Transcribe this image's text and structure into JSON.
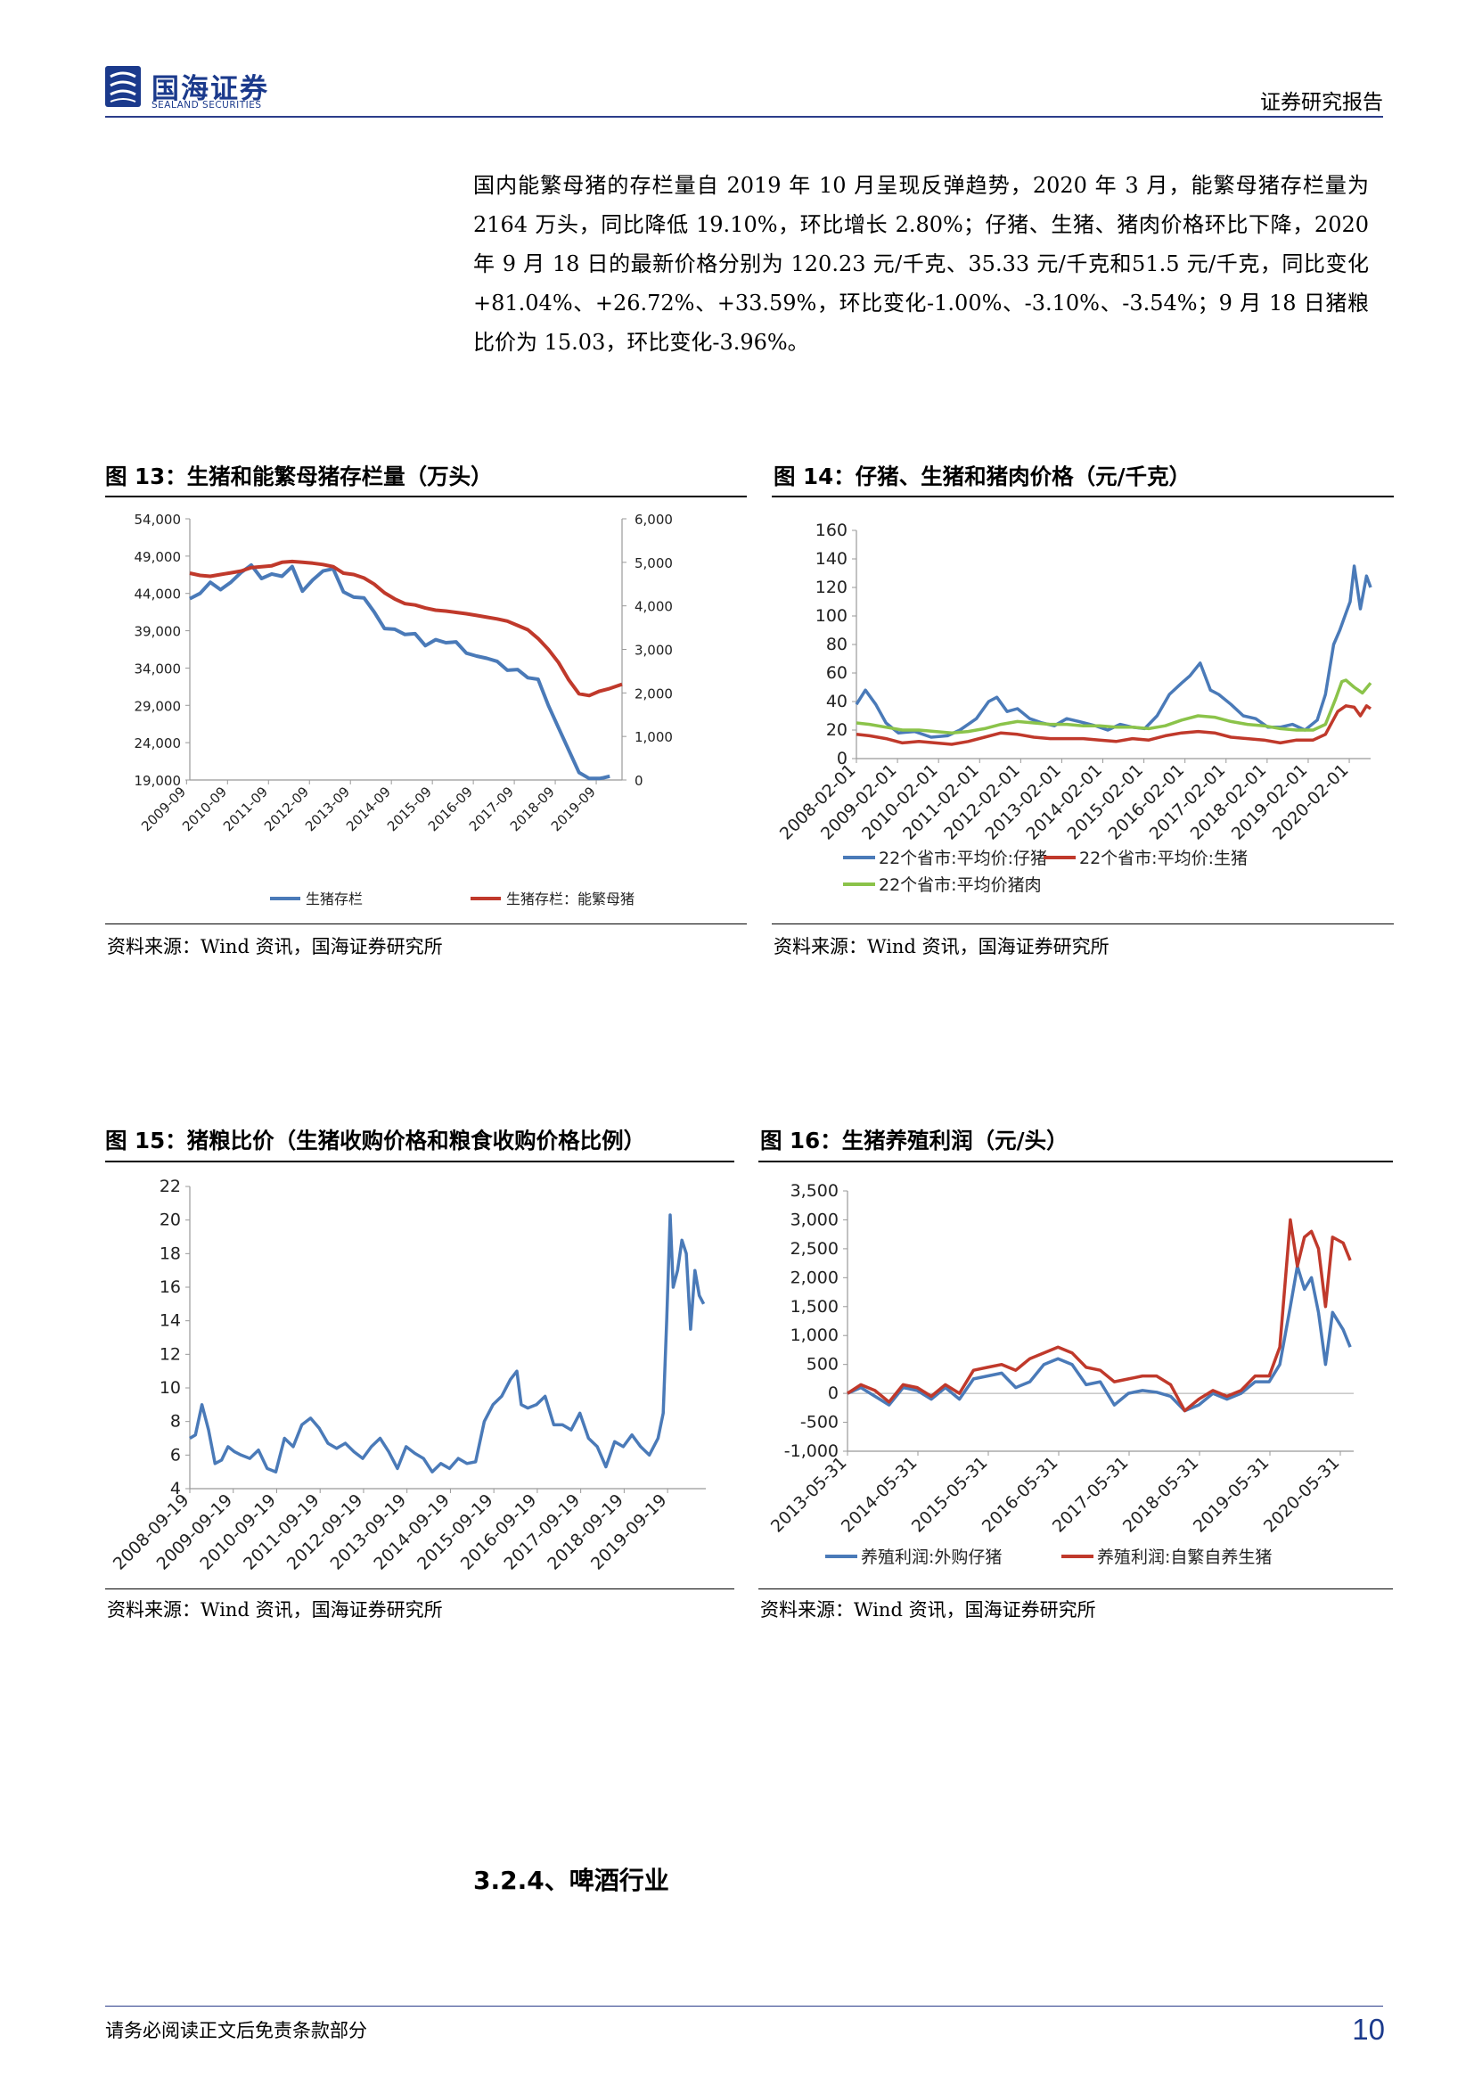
{
  "header": {
    "logo_cn": "国海证券",
    "logo_en": "SEALAND SECURITIES",
    "report_type": "证券研究报告"
  },
  "body_paragraph": "国内能繁母猪的存栏量自 2019 年 10 月呈现反弹趋势，2020 年 3 月，能繁母猪存栏量为 2164 万头，同比降低 19.10%，环比增长 2.80%；仔猪、生猪、猪肉价格环比下降，2020 年 9 月 18 日的最新价格分别为 120.23 元/千克、35.33 元/千克和51.5 元/千克，同比变化+81.04%、+26.72%、+33.59%，环比变化-1.00%、-3.10%、-3.54%；9 月 18 日猪粮比价为 15.03，环比变化-3.96%。",
  "figures": {
    "fig13": {
      "title": "图 13：生猪和能繁母猪存栏量（万头）",
      "source": "资料来源：Wind 资讯，国海证券研究所"
    },
    "fig14": {
      "title": "图 14：仔猪、生猪和猪肉价格（元/千克）",
      "source": "资料来源：Wind 资讯，国海证券研究所"
    },
    "fig15": {
      "title": "图 15：猪粮比价（生猪收购价格和粮食收购价格比例）",
      "source": "资料来源：Wind 资讯，国海证券研究所"
    },
    "fig16": {
      "title": "图 16：生猪养殖利润（元/头）",
      "source": "资料来源：Wind 资讯，国海证券研究所"
    }
  },
  "section_title": "3.2.4、啤酒行业",
  "footer": {
    "disclaimer": "请务必阅读正文后免责条款部分",
    "page_number": "10"
  },
  "chart_data": [
    {
      "id": "fig13",
      "type": "line",
      "x_start": 2009.75,
      "x_end": 2020.3,
      "x_ticks": [
        "2009-09",
        "2010-09",
        "2011-09",
        "2012-09",
        "2013-09",
        "2014-09",
        "2015-09",
        "2016-09",
        "2017-09",
        "2018-09",
        "2019-09"
      ],
      "x_tick_values": [
        2009.67,
        2010.67,
        2011.67,
        2012.67,
        2013.67,
        2014.67,
        2015.67,
        2016.67,
        2017.67,
        2018.67,
        2019.67
      ],
      "ylim": [
        19000,
        54000
      ],
      "y_ticks": [
        "19,000",
        "24,000",
        "29,000",
        "34,000",
        "39,000",
        "44,000",
        "49,000",
        "54,000"
      ],
      "y_tick_values": [
        19000,
        24000,
        29000,
        34000,
        39000,
        44000,
        49000,
        54000
      ],
      "y2lim": [
        0,
        6000
      ],
      "y2_ticks": [
        "0",
        "1,000",
        "2,000",
        "3,000",
        "4,000",
        "5,000",
        "6,000"
      ],
      "y2_tick_values": [
        0,
        1000,
        2000,
        3000,
        4000,
        5000,
        6000
      ],
      "legend_position": "bottom",
      "series": [
        {
          "name": "生猪存栏",
          "color": "#4a7ab8",
          "axis": "left",
          "x": [
            2009.75,
            2010.0,
            2010.25,
            2010.5,
            2010.75,
            2011.0,
            2011.25,
            2011.5,
            2011.75,
            2012.0,
            2012.25,
            2012.5,
            2012.75,
            2013.0,
            2013.25,
            2013.5,
            2013.75,
            2014.0,
            2014.25,
            2014.5,
            2014.75,
            2015.0,
            2015.25,
            2015.5,
            2015.75,
            2016.0,
            2016.25,
            2016.5,
            2016.75,
            2017.0,
            2017.25,
            2017.5,
            2017.75,
            2018.0,
            2018.25,
            2018.5,
            2018.75,
            2019.0,
            2019.25,
            2019.5,
            2019.75,
            2019.85,
            2020.0
          ],
          "values": [
            43300,
            44000,
            45500,
            44500,
            45500,
            46800,
            47800,
            46000,
            46600,
            46300,
            47600,
            44300,
            45800,
            47000,
            47300,
            44200,
            43500,
            43400,
            41500,
            39300,
            39200,
            38500,
            38600,
            37000,
            37800,
            37400,
            37500,
            36000,
            35600,
            35300,
            34900,
            33700,
            33800,
            32700,
            32500,
            29000,
            26000,
            23000,
            20000,
            19200,
            19200,
            19300,
            19500
          ]
        },
        {
          "name": "生猪存栏：能繁母猪",
          "color": "#c0392b",
          "axis": "right",
          "x": [
            2009.75,
            2010.0,
            2010.25,
            2010.5,
            2010.75,
            2011.0,
            2011.25,
            2011.5,
            2011.75,
            2012.0,
            2012.25,
            2012.5,
            2012.75,
            2013.0,
            2013.25,
            2013.5,
            2013.75,
            2014.0,
            2014.25,
            2014.5,
            2014.75,
            2015.0,
            2015.25,
            2015.5,
            2015.75,
            2016.0,
            2016.25,
            2016.5,
            2016.75,
            2017.0,
            2017.25,
            2017.5,
            2017.75,
            2018.0,
            2018.25,
            2018.5,
            2018.75,
            2019.0,
            2019.25,
            2019.5,
            2019.75,
            2020.0,
            2020.3
          ],
          "values": [
            4750,
            4700,
            4680,
            4720,
            4760,
            4800,
            4880,
            4900,
            4920,
            5000,
            5020,
            5000,
            4980,
            4950,
            4900,
            4750,
            4720,
            4640,
            4500,
            4300,
            4160,
            4050,
            4020,
            3950,
            3900,
            3880,
            3850,
            3820,
            3780,
            3740,
            3700,
            3650,
            3550,
            3450,
            3250,
            3000,
            2700,
            2300,
            1980,
            1940,
            2040,
            2100,
            2200
          ]
        }
      ]
    },
    {
      "id": "fig14",
      "type": "line",
      "x_start": 2008.08,
      "x_end": 2020.6,
      "x_ticks": [
        "2008-02-01",
        "2009-02-01",
        "2010-02-01",
        "2011-02-01",
        "2012-02-01",
        "2013-02-01",
        "2014-02-01",
        "2015-02-01",
        "2016-02-01",
        "2017-02-01",
        "2018-02-01",
        "2019-02-01",
        "2020-02-01"
      ],
      "x_tick_values": [
        2008.08,
        2009.08,
        2010.08,
        2011.08,
        2012.08,
        2013.08,
        2014.08,
        2015.08,
        2016.08,
        2017.08,
        2018.08,
        2019.08,
        2020.08
      ],
      "ylim": [
        0,
        160
      ],
      "y_ticks": [
        "0",
        "20",
        "40",
        "60",
        "80",
        "100",
        "120",
        "140",
        "160"
      ],
      "y_tick_values": [
        0,
        20,
        40,
        60,
        80,
        100,
        120,
        140,
        160
      ],
      "legend_position": "bottom",
      "series": [
        {
          "name": "22个省市:平均价:仔猪",
          "color": "#4a7ab8",
          "x": [
            2008.08,
            2008.3,
            2008.55,
            2008.8,
            2009.1,
            2009.5,
            2009.9,
            2010.3,
            2010.6,
            2011.0,
            2011.3,
            2011.5,
            2011.75,
            2012.0,
            2012.3,
            2012.6,
            2012.9,
            2013.2,
            2013.5,
            2013.9,
            2014.2,
            2014.5,
            2014.8,
            2015.1,
            2015.4,
            2015.7,
            2016.0,
            2016.2,
            2016.45,
            2016.7,
            2016.9,
            2017.2,
            2017.5,
            2017.8,
            2018.1,
            2018.4,
            2018.7,
            2019.0,
            2019.3,
            2019.5,
            2019.7,
            2019.85,
            2020.0,
            2020.1,
            2020.2,
            2020.35,
            2020.5,
            2020.6
          ],
          "values": [
            38,
            48,
            38,
            25,
            18,
            19,
            15,
            16,
            20,
            28,
            40,
            43,
            33,
            35,
            28,
            25,
            23,
            28,
            26,
            23,
            20,
            24,
            22,
            21,
            30,
            45,
            53,
            58,
            67,
            48,
            45,
            38,
            30,
            28,
            22,
            22,
            24,
            20,
            27,
            45,
            80,
            90,
            102,
            110,
            135,
            105,
            128,
            120
          ]
        },
        {
          "name": "22个省市:平均价:生猪",
          "color": "#c0392b",
          "x": [
            2008.08,
            2008.4,
            2008.8,
            2009.2,
            2009.6,
            2010.0,
            2010.4,
            2010.8,
            2011.2,
            2011.6,
            2012.0,
            2012.4,
            2012.8,
            2013.2,
            2013.6,
            2014.0,
            2014.4,
            2014.8,
            2015.2,
            2015.6,
            2016.0,
            2016.4,
            2016.8,
            2017.2,
            2017.6,
            2018.0,
            2018.4,
            2018.8,
            2019.2,
            2019.5,
            2019.8,
            2020.0,
            2020.2,
            2020.35,
            2020.5,
            2020.6
          ],
          "values": [
            17,
            16,
            14,
            11,
            12,
            11,
            10,
            12,
            15,
            18,
            17,
            15,
            14,
            14,
            14,
            13,
            12,
            14,
            13,
            16,
            18,
            19,
            18,
            15,
            14,
            13,
            11,
            13,
            13,
            17,
            33,
            37,
            36,
            30,
            37,
            35
          ]
        },
        {
          "name": "22个省市:平均价猪肉",
          "color": "#8bc34a",
          "x": [
            2008.08,
            2008.4,
            2008.8,
            2009.2,
            2009.6,
            2010.0,
            2010.4,
            2010.8,
            2011.2,
            2011.6,
            2012.0,
            2012.4,
            2012.8,
            2013.2,
            2013.6,
            2014.0,
            2014.4,
            2014.8,
            2015.2,
            2015.6,
            2016.0,
            2016.4,
            2016.8,
            2017.2,
            2017.6,
            2018.0,
            2018.4,
            2018.8,
            2019.2,
            2019.5,
            2019.75,
            2019.9,
            2020.0,
            2020.2,
            2020.4,
            2020.6
          ],
          "values": [
            25,
            24,
            22,
            20,
            20,
            19,
            18,
            19,
            21,
            24,
            26,
            25,
            24,
            24,
            23,
            23,
            22,
            22,
            21,
            23,
            27,
            30,
            29,
            26,
            24,
            23,
            21,
            20,
            20,
            24,
            42,
            54,
            55,
            50,
            46,
            53
          ]
        }
      ]
    },
    {
      "id": "fig15",
      "type": "line",
      "x_start": 2008.72,
      "x_end": 2020.6,
      "x_ticks": [
        "2008-09-19",
        "2009-09-19",
        "2010-09-19",
        "2011-09-19",
        "2012-09-19",
        "2013-09-19",
        "2014-09-19",
        "2015-09-19",
        "2016-09-19",
        "2017-09-19",
        "2018-09-19",
        "2019-09-19"
      ],
      "x_tick_values": [
        2008.72,
        2009.72,
        2010.72,
        2011.72,
        2012.72,
        2013.72,
        2014.72,
        2015.72,
        2016.72,
        2017.72,
        2018.72,
        2019.72
      ],
      "ylim": [
        4,
        22
      ],
      "y_ticks": [
        "4",
        "6",
        "8",
        "10",
        "12",
        "14",
        "16",
        "18",
        "20",
        "22"
      ],
      "y_tick_values": [
        4,
        6,
        8,
        10,
        12,
        14,
        16,
        18,
        20,
        22
      ],
      "legend_position": "none",
      "series": [
        {
          "name": "",
          "color": "#4a7ab8",
          "x": [
            2008.72,
            2008.85,
            2009.0,
            2009.15,
            2009.3,
            2009.45,
            2009.6,
            2009.75,
            2009.9,
            2010.1,
            2010.3,
            2010.5,
            2010.7,
            2010.9,
            2011.1,
            2011.3,
            2011.5,
            2011.7,
            2011.9,
            2012.1,
            2012.3,
            2012.5,
            2012.7,
            2012.9,
            2013.1,
            2013.3,
            2013.5,
            2013.7,
            2013.9,
            2014.1,
            2014.3,
            2014.5,
            2014.7,
            2014.9,
            2015.1,
            2015.3,
            2015.5,
            2015.7,
            2015.9,
            2016.1,
            2016.25,
            2016.35,
            2016.5,
            2016.7,
            2016.9,
            2017.1,
            2017.3,
            2017.5,
            2017.7,
            2017.9,
            2018.1,
            2018.3,
            2018.5,
            2018.7,
            2018.9,
            2019.1,
            2019.3,
            2019.5,
            2019.62,
            2019.7,
            2019.78,
            2019.85,
            2019.95,
            2020.05,
            2020.15,
            2020.25,
            2020.35,
            2020.45,
            2020.55
          ],
          "values": [
            7.0,
            7.2,
            9.0,
            7.5,
            5.5,
            5.7,
            6.5,
            6.2,
            6.0,
            5.8,
            6.3,
            5.2,
            5.0,
            7.0,
            6.5,
            7.8,
            8.2,
            7.6,
            6.7,
            6.4,
            6.7,
            6.2,
            5.8,
            6.5,
            7.0,
            6.2,
            5.2,
            6.5,
            6.1,
            5.8,
            5.0,
            5.5,
            5.2,
            5.8,
            5.5,
            5.6,
            8.0,
            9.0,
            9.5,
            10.5,
            11.0,
            9.0,
            8.8,
            9.0,
            9.5,
            7.8,
            7.8,
            7.5,
            8.5,
            7.0,
            6.5,
            5.3,
            6.8,
            6.5,
            7.2,
            6.5,
            6.0,
            7.0,
            8.5,
            14.0,
            20.3,
            16.0,
            17.0,
            18.8,
            18.0,
            13.5,
            17.0,
            15.5,
            15.0
          ]
        }
      ]
    },
    {
      "id": "fig16",
      "type": "line",
      "x_start": 2013.41,
      "x_end": 2020.6,
      "x_ticks": [
        "2013-05-31",
        "2014-05-31",
        "2015-05-31",
        "2016-05-31",
        "2017-05-31",
        "2018-05-31",
        "2019-05-31",
        "2020-05-31"
      ],
      "x_tick_values": [
        2013.41,
        2014.41,
        2015.41,
        2016.41,
        2017.41,
        2018.41,
        2019.41,
        2020.41
      ],
      "ylim": [
        -1000,
        3500
      ],
      "y_ticks": [
        "-1,000",
        "-500",
        "0",
        "500",
        "1,000",
        "1,500",
        "2,000",
        "2,500",
        "3,000",
        "3,500"
      ],
      "y_tick_values": [
        -1000,
        -500,
        0,
        500,
        1000,
        1500,
        2000,
        2500,
        3000,
        3500
      ],
      "legend_position": "bottom",
      "series": [
        {
          "name": "养殖利润:外购仔猪",
          "color": "#4a7ab8",
          "x": [
            2013.41,
            2013.6,
            2013.8,
            2014.0,
            2014.2,
            2014.4,
            2014.6,
            2014.8,
            2015.0,
            2015.2,
            2015.4,
            2015.6,
            2015.8,
            2016.0,
            2016.2,
            2016.4,
            2016.6,
            2016.8,
            2017.0,
            2017.2,
            2017.4,
            2017.6,
            2017.8,
            2018.0,
            2018.2,
            2018.4,
            2018.6,
            2018.8,
            2019.0,
            2019.2,
            2019.4,
            2019.55,
            2019.7,
            2019.8,
            2019.9,
            2020.0,
            2020.1,
            2020.2,
            2020.3,
            2020.45,
            2020.55
          ],
          "values": [
            0,
            100,
            -50,
            -200,
            100,
            50,
            -100,
            100,
            -100,
            250,
            300,
            350,
            100,
            200,
            500,
            600,
            500,
            150,
            200,
            -200,
            0,
            50,
            20,
            -50,
            -300,
            -200,
            0,
            -100,
            0,
            200,
            200,
            500,
            1500,
            2200,
            1800,
            2000,
            1400,
            500,
            1400,
            1100,
            800
          ]
        },
        {
          "name": "养殖利润:自繁自养生猪",
          "color": "#c0392b",
          "x": [
            2013.41,
            2013.6,
            2013.8,
            2014.0,
            2014.2,
            2014.4,
            2014.6,
            2014.8,
            2015.0,
            2015.2,
            2015.4,
            2015.6,
            2015.8,
            2016.0,
            2016.2,
            2016.4,
            2016.6,
            2016.8,
            2017.0,
            2017.2,
            2017.4,
            2017.6,
            2017.8,
            2018.0,
            2018.2,
            2018.4,
            2018.6,
            2018.8,
            2019.0,
            2019.2,
            2019.4,
            2019.55,
            2019.7,
            2019.8,
            2019.9,
            2020.0,
            2020.1,
            2020.2,
            2020.3,
            2020.45,
            2020.55
          ],
          "values": [
            0,
            150,
            50,
            -150,
            150,
            100,
            -50,
            150,
            0,
            400,
            450,
            500,
            400,
            600,
            700,
            800,
            700,
            450,
            400,
            200,
            250,
            300,
            300,
            150,
            -300,
            -100,
            50,
            -50,
            50,
            300,
            300,
            800,
            3000,
            2200,
            2700,
            2800,
            2500,
            1500,
            2700,
            2600,
            2300
          ]
        }
      ]
    }
  ]
}
